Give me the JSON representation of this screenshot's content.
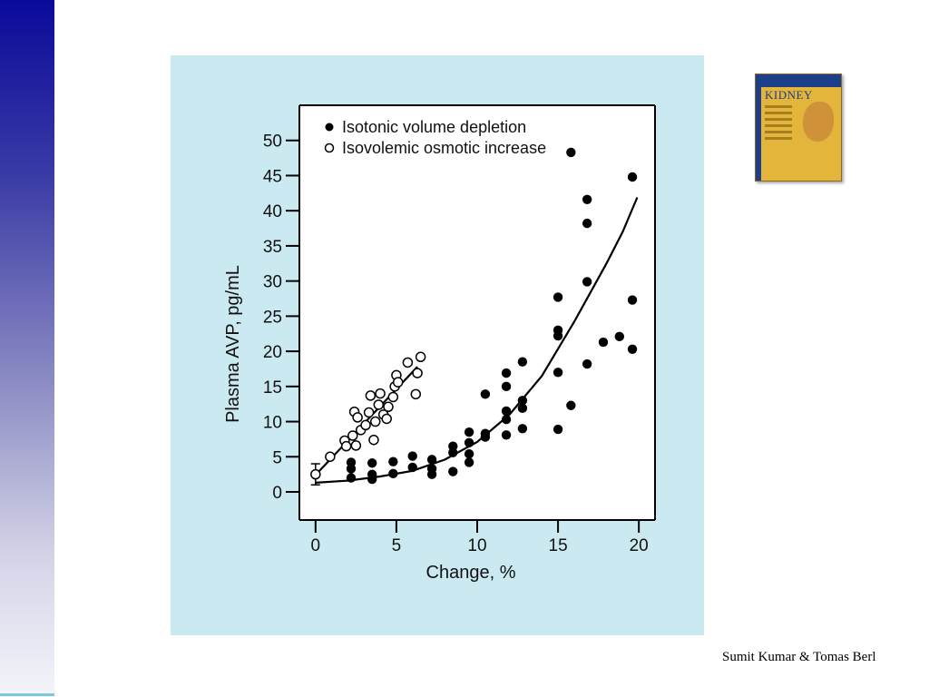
{
  "slide": {
    "credit": "Sumit Kumar & Tomas Berl",
    "book_title": "KIDNEY"
  },
  "colors": {
    "panel_bg": "#cbe9f1",
    "sidebar_top": "#0a0a9a",
    "book_cover": "#e3b53a"
  },
  "chart_data": {
    "type": "scatter",
    "xlabel": "Change, %",
    "ylabel": "Plasma AVP, pg/mL",
    "xlim": [
      -1,
      21
    ],
    "ylim": [
      -4,
      55
    ],
    "x_ticks": [
      0,
      5,
      10,
      15,
      20
    ],
    "y_ticks": [
      0,
      5,
      10,
      15,
      20,
      25,
      30,
      35,
      40,
      45,
      50
    ],
    "grid": false,
    "legend_position": "top-left",
    "series": [
      {
        "name": "Isotonic volume depletion",
        "marker": "filled-circle",
        "points": [
          [
            2.2,
            2.0
          ],
          [
            2.2,
            3.3
          ],
          [
            2.2,
            4.2
          ],
          [
            3.5,
            1.8
          ],
          [
            3.5,
            2.5
          ],
          [
            3.5,
            4.1
          ],
          [
            4.8,
            2.6
          ],
          [
            4.8,
            4.3
          ],
          [
            6.0,
            3.5
          ],
          [
            6.0,
            5.1
          ],
          [
            7.2,
            2.5
          ],
          [
            7.2,
            3.3
          ],
          [
            7.2,
            4.6
          ],
          [
            8.5,
            2.9
          ],
          [
            8.5,
            5.6
          ],
          [
            8.5,
            6.5
          ],
          [
            9.5,
            4.2
          ],
          [
            9.5,
            5.4
          ],
          [
            9.5,
            7.0
          ],
          [
            9.5,
            8.5
          ],
          [
            10.5,
            7.8
          ],
          [
            10.5,
            8.3
          ],
          [
            10.5,
            13.9
          ],
          [
            11.8,
            8.1
          ],
          [
            11.8,
            10.3
          ],
          [
            11.8,
            11.5
          ],
          [
            11.8,
            15.0
          ],
          [
            11.8,
            16.9
          ],
          [
            12.8,
            9.0
          ],
          [
            12.8,
            11.9
          ],
          [
            12.8,
            13.0
          ],
          [
            12.8,
            18.5
          ],
          [
            15.0,
            8.9
          ],
          [
            15.0,
            17.0
          ],
          [
            15.0,
            22.2
          ],
          [
            15.0,
            23.0
          ],
          [
            15.0,
            27.7
          ],
          [
            15.8,
            12.3
          ],
          [
            15.8,
            48.3
          ],
          [
            16.8,
            18.2
          ],
          [
            16.8,
            29.9
          ],
          [
            16.8,
            38.2
          ],
          [
            16.8,
            41.6
          ],
          [
            17.8,
            21.3
          ],
          [
            18.8,
            22.1
          ],
          [
            19.6,
            20.3
          ],
          [
            19.6,
            27.3
          ],
          [
            19.6,
            44.8
          ]
        ],
        "fit_curve": [
          [
            0,
            1.3
          ],
          [
            2,
            1.6
          ],
          [
            4,
            2.2
          ],
          [
            6,
            3.0
          ],
          [
            8,
            4.6
          ],
          [
            10,
            7.1
          ],
          [
            12,
            11.0
          ],
          [
            14,
            16.5
          ],
          [
            16,
            24.2
          ],
          [
            18,
            32.5
          ],
          [
            19,
            37.0
          ],
          [
            19.9,
            41.9
          ]
        ]
      },
      {
        "name": "Isovolemic osmotic increase",
        "marker": "open-circle",
        "error_bar": {
          "x": 0,
          "y": 2.5,
          "low": 1.0,
          "high": 4.0
        },
        "points": [
          [
            0,
            2.5
          ],
          [
            0.9,
            5.0
          ],
          [
            1.8,
            7.3
          ],
          [
            1.9,
            6.5
          ],
          [
            2.3,
            8.0
          ],
          [
            2.4,
            11.4
          ],
          [
            2.5,
            6.6
          ],
          [
            2.6,
            10.6
          ],
          [
            2.8,
            8.8
          ],
          [
            3.1,
            9.5
          ],
          [
            3.3,
            11.3
          ],
          [
            3.4,
            13.7
          ],
          [
            3.6,
            7.4
          ],
          [
            3.7,
            10.0
          ],
          [
            3.9,
            12.4
          ],
          [
            4.0,
            14.0
          ],
          [
            4.2,
            11.0
          ],
          [
            4.4,
            10.4
          ],
          [
            4.5,
            12.1
          ],
          [
            4.8,
            13.5
          ],
          [
            4.9,
            15.0
          ],
          [
            5.0,
            16.6
          ],
          [
            5.1,
            15.6
          ],
          [
            5.7,
            18.4
          ],
          [
            6.2,
            13.9
          ],
          [
            6.3,
            16.9
          ],
          [
            6.5,
            19.2
          ]
        ],
        "fit_curve": [
          [
            0,
            2.4
          ],
          [
            6.3,
            17.8
          ]
        ]
      }
    ]
  }
}
